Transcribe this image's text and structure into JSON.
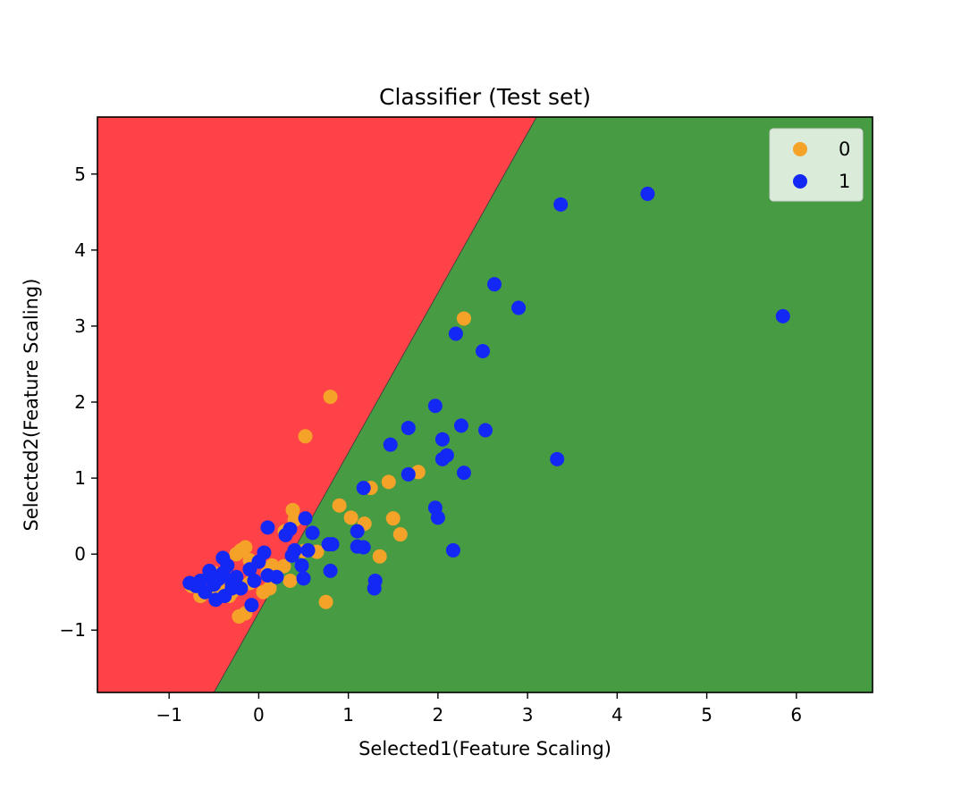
{
  "chart_data": {
    "type": "scatter",
    "title": "Classifier (Test set)",
    "xlabel": "Selected1(Feature Scaling)",
    "ylabel": "Selected2(Feature Scaling)",
    "xlim": [
      -1.8,
      6.85
    ],
    "ylim": [
      -1.82,
      5.75
    ],
    "xticks": [
      -1,
      0,
      1,
      2,
      3,
      4,
      5,
      6
    ],
    "yticks": [
      -1,
      0,
      1,
      2,
      3,
      4,
      5
    ],
    "xtick_labels": [
      "−1",
      "0",
      "1",
      "2",
      "3",
      "4",
      "5",
      "6"
    ],
    "ytick_labels": [
      "−1",
      "0",
      "1",
      "2",
      "3",
      "4",
      "5"
    ],
    "grid": false,
    "legend_position": "top-right",
    "regions": [
      {
        "class": "0",
        "color": "#ff4248"
      },
      {
        "class": "1",
        "color": "#469b43"
      }
    ],
    "decision_boundary": [
      [
        -0.5,
        -1.82
      ],
      [
        3.1,
        5.75
      ]
    ],
    "series": [
      {
        "name": "0",
        "color": "#f5a229",
        "points": [
          [
            0.8,
            2.07
          ],
          [
            0.52,
            1.55
          ],
          [
            2.29,
            3.1
          ],
          [
            1.78,
            1.08
          ],
          [
            1.45,
            0.95
          ],
          [
            1.25,
            0.87
          ],
          [
            0.9,
            0.64
          ],
          [
            1.03,
            0.48
          ],
          [
            1.18,
            0.4
          ],
          [
            1.5,
            0.47
          ],
          [
            1.58,
            0.26
          ],
          [
            1.35,
            -0.03
          ],
          [
            0.75,
            -0.63
          ],
          [
            0.38,
            0.58
          ],
          [
            0.4,
            0.45
          ],
          [
            0.29,
            0.3
          ],
          [
            0.65,
            0.03
          ],
          [
            0.5,
            0.04
          ],
          [
            0.28,
            -0.16
          ],
          [
            0.15,
            -0.15
          ],
          [
            0.35,
            -0.35
          ],
          [
            0.12,
            -0.45
          ],
          [
            0.05,
            -0.5
          ],
          [
            -0.15,
            0.09
          ],
          [
            -0.2,
            0.05
          ],
          [
            -0.25,
            0.0
          ],
          [
            -0.1,
            -0.08
          ],
          [
            -0.2,
            -0.42
          ],
          [
            -0.3,
            -0.5
          ],
          [
            -0.45,
            -0.45
          ],
          [
            -0.55,
            -0.5
          ],
          [
            -0.65,
            -0.55
          ],
          [
            -0.75,
            -0.42
          ],
          [
            -0.22,
            -0.82
          ],
          [
            -0.15,
            -0.78
          ],
          [
            -0.4,
            -0.3
          ],
          [
            -0.5,
            -0.25
          ],
          [
            -0.33,
            -0.55
          ],
          [
            -0.1,
            -0.38
          ],
          [
            0.1,
            -0.25
          ]
        ]
      },
      {
        "name": "1",
        "color": "#1428f5",
        "points": [
          [
            3.37,
            4.6
          ],
          [
            4.34,
            4.74
          ],
          [
            5.85,
            3.13
          ],
          [
            2.63,
            3.55
          ],
          [
            2.9,
            3.24
          ],
          [
            2.2,
            2.9
          ],
          [
            2.5,
            2.67
          ],
          [
            1.97,
            1.95
          ],
          [
            1.67,
            1.66
          ],
          [
            1.47,
            1.44
          ],
          [
            2.05,
            1.51
          ],
          [
            2.26,
            1.69
          ],
          [
            2.53,
            1.63
          ],
          [
            2.1,
            1.3
          ],
          [
            2.05,
            1.25
          ],
          [
            2.29,
            1.07
          ],
          [
            1.67,
            1.05
          ],
          [
            3.33,
            1.25
          ],
          [
            1.17,
            0.87
          ],
          [
            1.97,
            0.61
          ],
          [
            2.0,
            0.48
          ],
          [
            2.17,
            0.05
          ],
          [
            1.1,
            0.3
          ],
          [
            1.1,
            0.1
          ],
          [
            1.17,
            0.09
          ],
          [
            0.82,
            0.13
          ],
          [
            0.78,
            0.13
          ],
          [
            0.8,
            -0.22
          ],
          [
            1.3,
            -0.35
          ],
          [
            1.29,
            -0.45
          ],
          [
            0.6,
            0.28
          ],
          [
            0.52,
            0.47
          ],
          [
            0.55,
            0.05
          ],
          [
            0.4,
            0.05
          ],
          [
            0.35,
            0.33
          ],
          [
            0.3,
            0.25
          ],
          [
            0.37,
            -0.02
          ],
          [
            0.48,
            -0.15
          ],
          [
            0.5,
            -0.32
          ],
          [
            0.1,
            0.35
          ],
          [
            0.06,
            0.02
          ],
          [
            0.0,
            -0.1
          ],
          [
            0.2,
            -0.3
          ],
          [
            0.1,
            -0.28
          ],
          [
            -0.1,
            -0.2
          ],
          [
            -0.25,
            -0.3
          ],
          [
            -0.3,
            -0.45
          ],
          [
            -0.05,
            -0.35
          ],
          [
            -0.08,
            -0.67
          ],
          [
            -0.4,
            -0.05
          ],
          [
            -0.4,
            -0.25
          ],
          [
            -0.45,
            -0.33
          ],
          [
            -0.5,
            -0.4
          ],
          [
            -0.55,
            -0.3
          ],
          [
            -0.6,
            -0.5
          ],
          [
            -0.65,
            -0.35
          ],
          [
            -0.7,
            -0.42
          ],
          [
            -0.77,
            -0.38
          ],
          [
            -0.48,
            -0.6
          ],
          [
            -0.38,
            -0.55
          ],
          [
            -0.3,
            -0.38
          ],
          [
            -0.2,
            -0.45
          ],
          [
            -0.55,
            -0.22
          ],
          [
            -0.35,
            -0.15
          ]
        ]
      }
    ]
  }
}
